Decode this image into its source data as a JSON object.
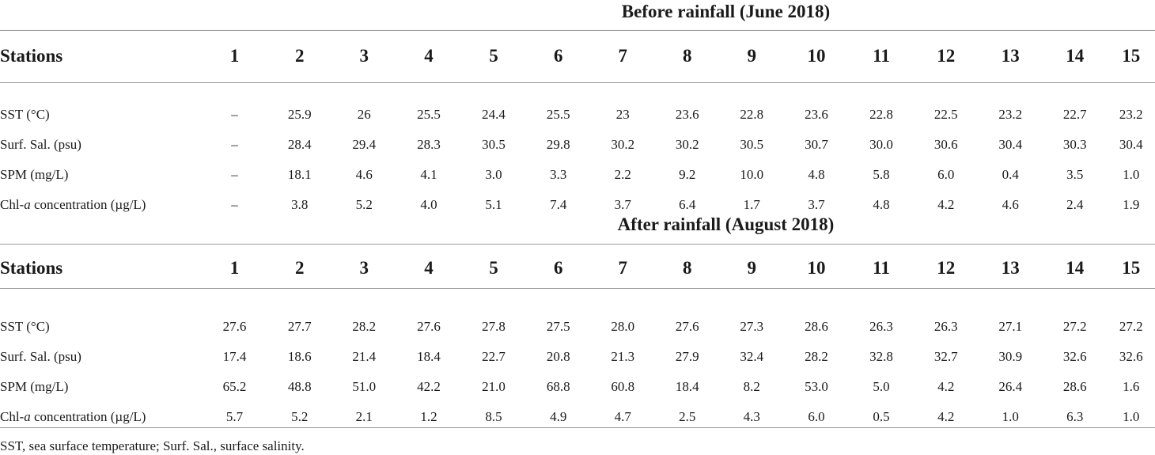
{
  "before": {
    "title": "Before rainfall (June 2018)",
    "header": [
      "Stations",
      "1",
      "2",
      "3",
      "4",
      "5",
      "6",
      "7",
      "8",
      "9",
      "10",
      "11",
      "12",
      "13",
      "14",
      "15"
    ],
    "rows": [
      {
        "label": "SST (°C)",
        "values": [
          "–",
          "25.9",
          "26",
          "25.5",
          "24.4",
          "25.5",
          "23",
          "23.6",
          "22.8",
          "23.6",
          "22.8",
          "22.5",
          "23.2",
          "22.7",
          "23.2"
        ]
      },
      {
        "label": "Surf. Sal. (psu)",
        "values": [
          "–",
          "28.4",
          "29.4",
          "28.3",
          "30.5",
          "29.8",
          "30.2",
          "30.2",
          "30.5",
          "30.7",
          "30.0",
          "30.6",
          "30.4",
          "30.3",
          "30.4"
        ]
      },
      {
        "label": "SPM (mg/L)",
        "values": [
          "–",
          "18.1",
          "4.6",
          "4.1",
          "3.0",
          "3.3",
          "2.2",
          "9.2",
          "10.0",
          "4.8",
          "5.8",
          "6.0",
          "0.4",
          "3.5",
          "1.0"
        ]
      },
      {
        "label_pre": "Chl-",
        "label_em": "a",
        "label_post": " concentration (µg/L)",
        "values": [
          "–",
          "3.8",
          "5.2",
          "4.0",
          "5.1",
          "7.4",
          "3.7",
          "6.4",
          "1.7",
          "3.7",
          "4.8",
          "4.2",
          "4.6",
          "2.4",
          "1.9"
        ]
      }
    ]
  },
  "after": {
    "title": "After rainfall (August 2018)",
    "header": [
      "Stations",
      "1",
      "2",
      "3",
      "4",
      "5",
      "6",
      "7",
      "8",
      "9",
      "10",
      "11",
      "12",
      "13",
      "14",
      "15"
    ],
    "rows": [
      {
        "label": "SST (°C)",
        "values": [
          "27.6",
          "27.7",
          "28.2",
          "27.6",
          "27.8",
          "27.5",
          "28.0",
          "27.6",
          "27.3",
          "28.6",
          "26.3",
          "26.3",
          "27.1",
          "27.2",
          "27.2"
        ]
      },
      {
        "label": "Surf. Sal. (psu)",
        "values": [
          "17.4",
          "18.6",
          "21.4",
          "18.4",
          "22.7",
          "20.8",
          "21.3",
          "27.9",
          "32.4",
          "28.2",
          "32.8",
          "32.7",
          "30.9",
          "32.6",
          "32.6"
        ]
      },
      {
        "label": "SPM (mg/L)",
        "values": [
          "65.2",
          "48.8",
          "51.0",
          "42.2",
          "21.0",
          "68.8",
          "60.8",
          "18.4",
          "8.2",
          "53.0",
          "5.0",
          "4.2",
          "26.4",
          "28.6",
          "1.6"
        ]
      },
      {
        "label_pre": "Chl-",
        "label_em": "a",
        "label_post": " concentration (µg/L)",
        "values": [
          "5.7",
          "5.2",
          "2.1",
          "1.2",
          "8.5",
          "4.9",
          "4.7",
          "2.5",
          "4.3",
          "6.0",
          "0.5",
          "4.2",
          "1.0",
          "6.3",
          "1.0"
        ]
      }
    ]
  },
  "footnote": "SST, sea surface temperature; Surf. Sal., surface salinity."
}
